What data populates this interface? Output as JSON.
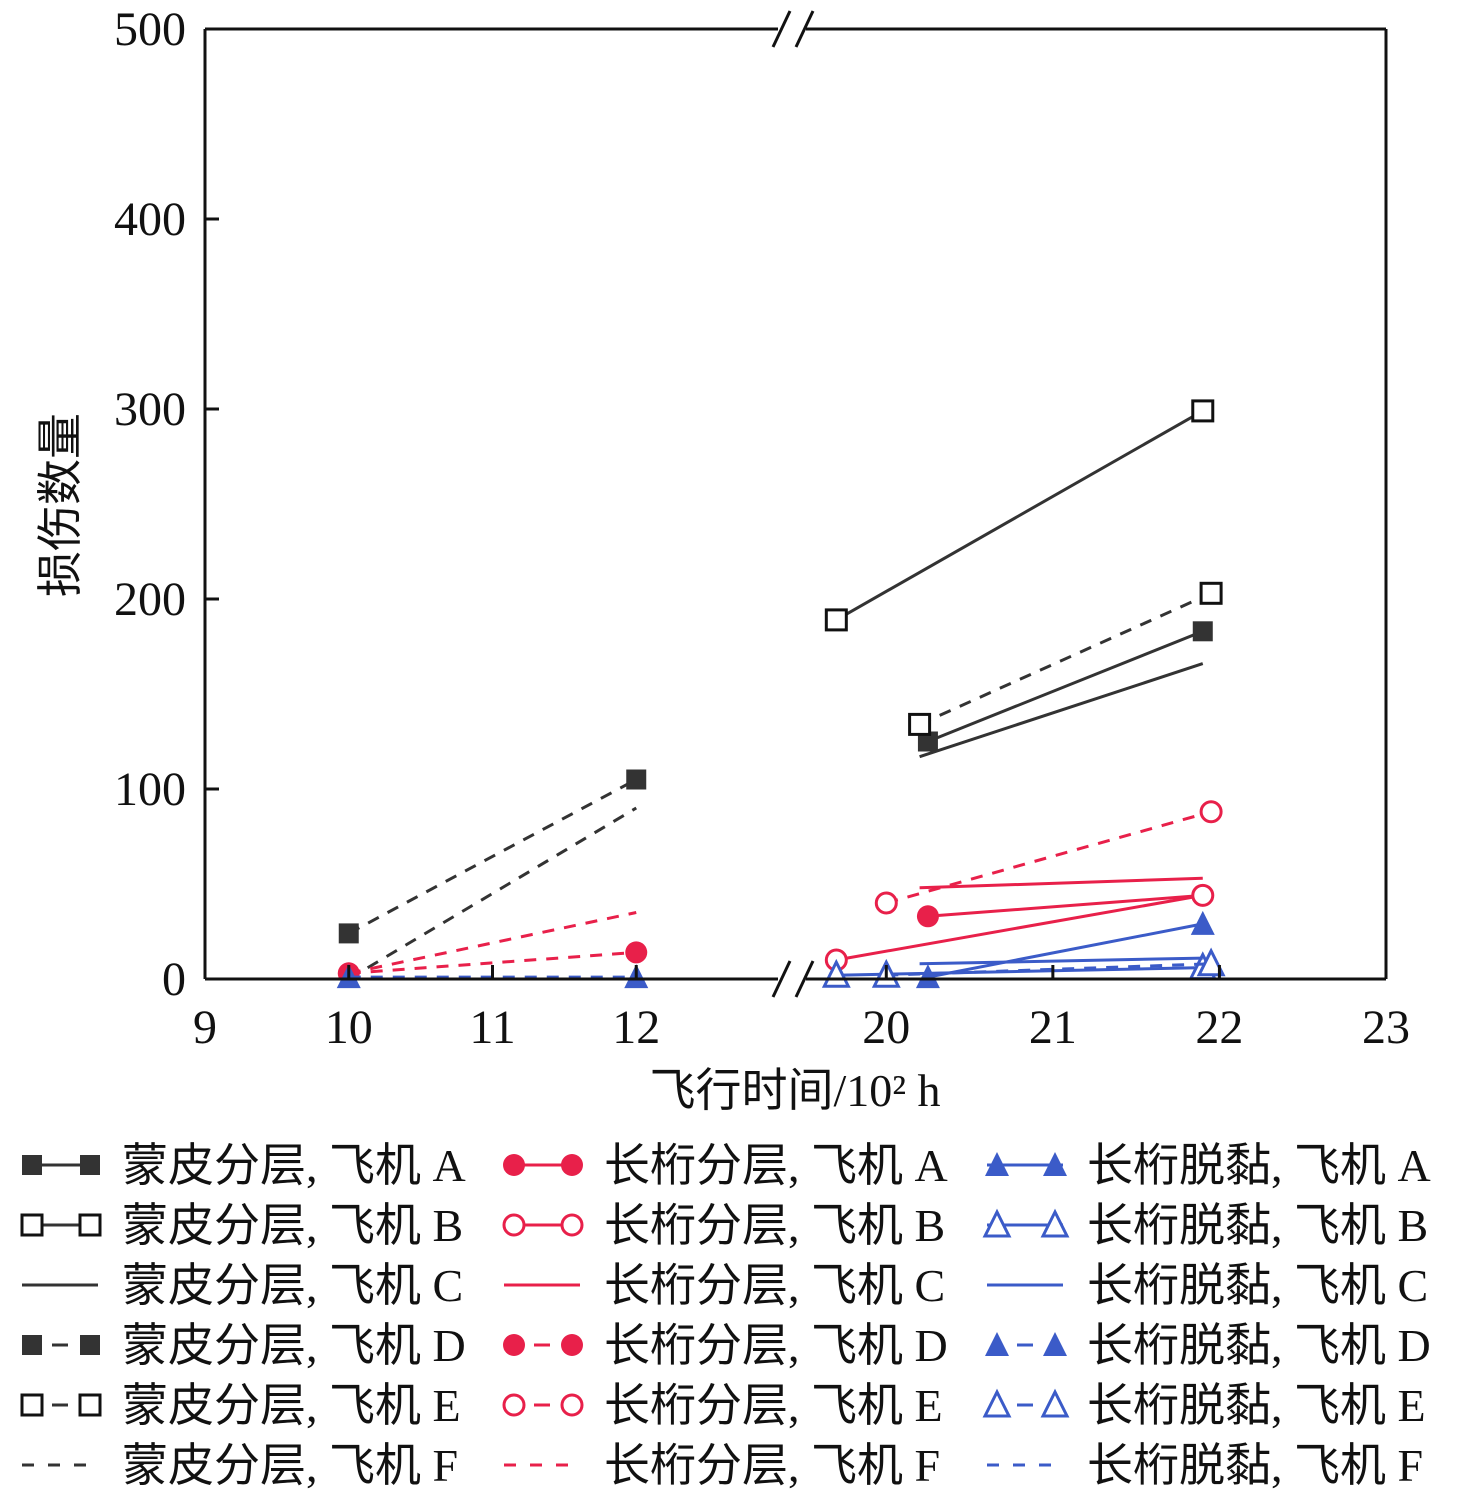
{
  "chart_data": {
    "type": "line",
    "title": "",
    "xlabel": "飞行时间/10² h",
    "ylabel": "损伤数量",
    "x_ticks": [
      "9",
      "10",
      "11",
      "12",
      "20",
      "21",
      "22",
      "23"
    ],
    "y_ticks": [
      "0",
      "100",
      "200",
      "300",
      "400",
      "500"
    ],
    "ylim": [
      0,
      500
    ],
    "x_axis_break": {
      "from": 12,
      "to": 20
    },
    "xlim_segments": [
      [
        9,
        13
      ],
      [
        19.5,
        23
      ]
    ],
    "grid": false,
    "legend_position": "bottom",
    "colors": {
      "skin": "#333333",
      "stringer_delam": "#e8204a",
      "stringer_debond": "#3b5bc8"
    },
    "series": [
      {
        "name": "蒙皮分层, 飞机 A",
        "group": "skin",
        "marker": "square-filled",
        "line": "solid",
        "points": [
          [
            20.25,
            125
          ],
          [
            21.9,
            183
          ]
        ]
      },
      {
        "name": "蒙皮分层, 飞机 B",
        "group": "skin",
        "marker": "square-open",
        "line": "solid",
        "points": [
          [
            19.7,
            189
          ],
          [
            21.9,
            299
          ]
        ]
      },
      {
        "name": "蒙皮分层, 飞机 C",
        "group": "skin",
        "marker": "none",
        "line": "solid",
        "points": [
          [
            20.2,
            117
          ],
          [
            21.9,
            166
          ]
        ]
      },
      {
        "name": "蒙皮分层, 飞机 D",
        "group": "skin",
        "marker": "square-filled",
        "line": "dashed",
        "points": [
          [
            10,
            24
          ],
          [
            12,
            105
          ]
        ]
      },
      {
        "name": "蒙皮分层, 飞机 E",
        "group": "skin",
        "marker": "square-open",
        "line": "dashed",
        "points": [
          [
            20.2,
            134
          ],
          [
            21.95,
            203
          ]
        ]
      },
      {
        "name": "蒙皮分层, 飞机 F",
        "group": "skin",
        "marker": "none",
        "line": "dashed",
        "points": [
          [
            10,
            0
          ],
          [
            12,
            90
          ]
        ]
      },
      {
        "name": "长桁分层, 飞机 A",
        "group": "stringer_delam",
        "marker": "circle-filled",
        "line": "solid",
        "points": [
          [
            20.25,
            33
          ],
          [
            21.9,
            44
          ]
        ]
      },
      {
        "name": "长桁分层, 飞机 B",
        "group": "stringer_delam",
        "marker": "circle-open",
        "line": "solid",
        "points": [
          [
            19.7,
            10
          ],
          [
            21.9,
            44
          ]
        ]
      },
      {
        "name": "长桁分层, 飞机 C",
        "group": "stringer_delam",
        "marker": "none",
        "line": "solid",
        "points": [
          [
            20.2,
            48
          ],
          [
            21.9,
            53
          ]
        ]
      },
      {
        "name": "长桁分层, 飞机 D",
        "group": "stringer_delam",
        "marker": "circle-filled",
        "line": "dashed",
        "points": [
          [
            10,
            3
          ],
          [
            12,
            14
          ]
        ]
      },
      {
        "name": "长桁分层, 飞机 E",
        "group": "stringer_delam",
        "marker": "circle-open",
        "line": "dashed",
        "points": [
          [
            20.0,
            40
          ],
          [
            21.95,
            88
          ]
        ]
      },
      {
        "name": "长桁分层, 飞机 F",
        "group": "stringer_delam",
        "marker": "none",
        "line": "dashed",
        "points": [
          [
            10,
            3
          ],
          [
            12,
            35
          ]
        ]
      },
      {
        "name": "长桁脱黏, 飞机 A",
        "group": "stringer_debond",
        "marker": "triangle-filled",
        "line": "solid",
        "points": [
          [
            20.25,
            1
          ],
          [
            21.9,
            29
          ]
        ]
      },
      {
        "name": "长桁脱黏, 飞机 B",
        "group": "stringer_debond",
        "marker": "triangle-open",
        "line": "solid",
        "points": [
          [
            19.7,
            2
          ],
          [
            21.9,
            6
          ]
        ]
      },
      {
        "name": "长桁脱黏, 飞机 C",
        "group": "stringer_debond",
        "marker": "none",
        "line": "solid",
        "points": [
          [
            20.2,
            8
          ],
          [
            21.9,
            11
          ]
        ]
      },
      {
        "name": "长桁脱黏, 飞机 D",
        "group": "stringer_debond",
        "marker": "triangle-filled",
        "line": "dashed",
        "points": [
          [
            10,
            1
          ],
          [
            12,
            1
          ]
        ]
      },
      {
        "name": "长桁脱黏, 飞机 E",
        "group": "stringer_debond",
        "marker": "triangle-open",
        "line": "dashed",
        "points": [
          [
            20.0,
            2
          ],
          [
            21.95,
            8
          ]
        ]
      },
      {
        "name": "长桁脱黏, 飞机 F",
        "group": "stringer_debond",
        "marker": "none",
        "line": "dashed",
        "points": [
          [
            10,
            0
          ],
          [
            12,
            0
          ]
        ]
      }
    ]
  }
}
